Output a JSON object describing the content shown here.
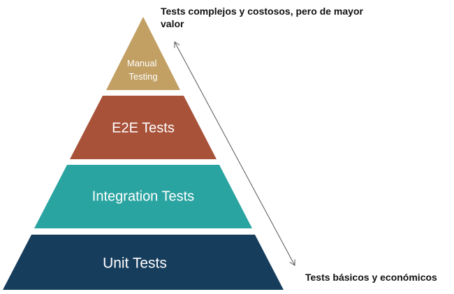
{
  "tiers": [
    {
      "lines": [
        "Manual",
        "Testing"
      ],
      "color": "#c2a064"
    },
    {
      "lines": [
        "E2E Tests"
      ],
      "color": "#a8523a"
    },
    {
      "lines": [
        "Integration Tests"
      ],
      "color": "#2aa4a1"
    },
    {
      "lines": [
        "Unit Tests"
      ],
      "color": "#173d5c"
    }
  ],
  "annotations": {
    "top_line1": "Tests complejos y costosos, pero de mayor",
    "top_line2": "valor",
    "bottom": "Tests básicos y económicos"
  }
}
